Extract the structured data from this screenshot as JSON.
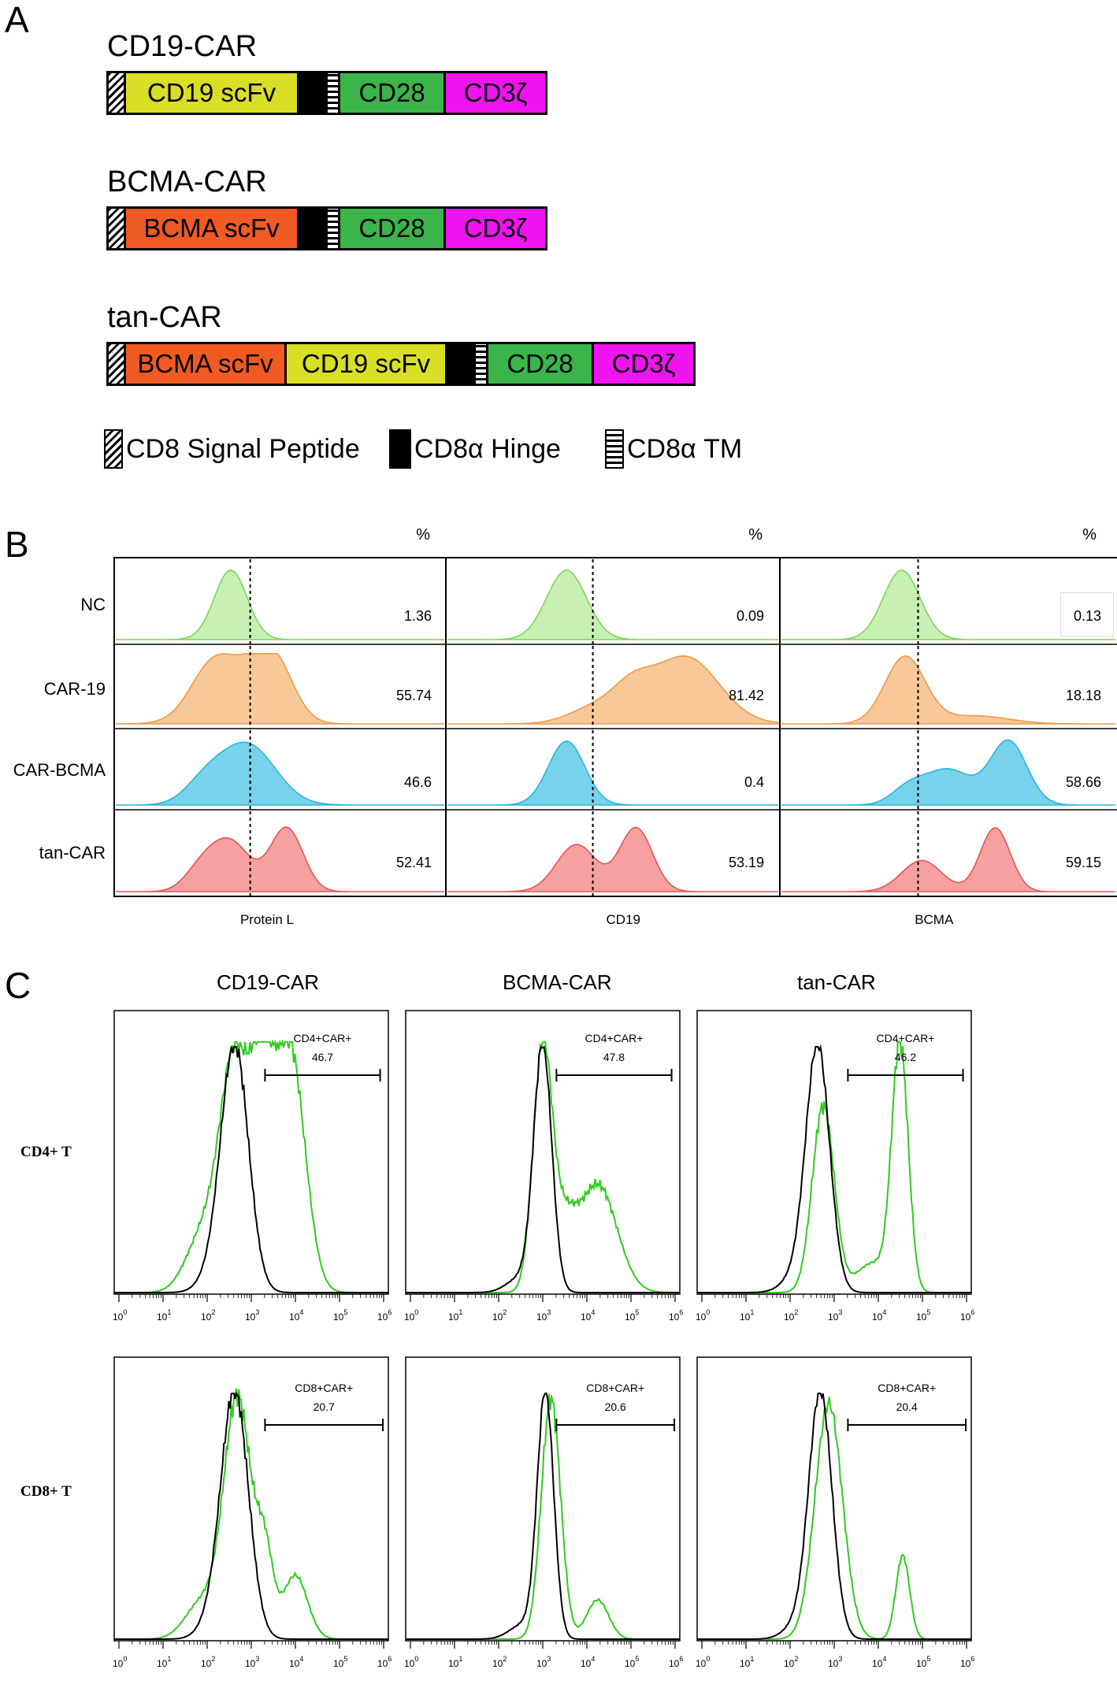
{
  "panelA": {
    "letter": "A",
    "constructs": [
      {
        "title": "CD19-CAR",
        "segments": [
          {
            "type": "signal"
          },
          {
            "type": "domain",
            "label": "CD19 scFv",
            "color": "#d9df26"
          },
          {
            "type": "hinge"
          },
          {
            "type": "tm"
          },
          {
            "type": "domain",
            "label": "CD28",
            "color": "#3bb54a"
          },
          {
            "type": "domain",
            "label": "CD3ζ",
            "color": "#f014f0"
          }
        ]
      },
      {
        "title": "BCMA-CAR",
        "segments": [
          {
            "type": "signal"
          },
          {
            "type": "domain",
            "label": "BCMA scFv",
            "color": "#f05a23"
          },
          {
            "type": "hinge"
          },
          {
            "type": "tm"
          },
          {
            "type": "domain",
            "label": "CD28",
            "color": "#3bb54a"
          },
          {
            "type": "domain",
            "label": "CD3ζ",
            "color": "#f014f0"
          }
        ]
      },
      {
        "title": "tan-CAR",
        "segments": [
          {
            "type": "signal"
          },
          {
            "type": "domain",
            "label": "BCMA scFv",
            "color": "#f05a23"
          },
          {
            "type": "domain",
            "label": "CD19 scFv",
            "color": "#d9df26"
          },
          {
            "type": "hinge"
          },
          {
            "type": "tm"
          },
          {
            "type": "domain",
            "label": "CD28",
            "color": "#3bb54a"
          },
          {
            "type": "domain",
            "label": "CD3ζ",
            "color": "#f014f0"
          }
        ]
      }
    ],
    "legend": [
      {
        "type": "signal",
        "label": "CD8 Signal Peptide"
      },
      {
        "type": "hinge",
        "label": "CD8α Hinge"
      },
      {
        "type": "tm",
        "label": "CD8α TM"
      }
    ]
  },
  "panelB": {
    "letter": "B",
    "pct_header": "%",
    "rows": [
      "NC",
      "CAR-19",
      "CAR-BCMA",
      "tan-CAR"
    ],
    "row_colors": {
      "fill": [
        "#c8f0b4",
        "#f8c898",
        "#78d2ec",
        "#f6a0a0"
      ],
      "line": [
        "#7fd45a",
        "#ec9a48",
        "#29b6d8",
        "#e85454"
      ]
    },
    "columns": [
      {
        "xlabel": "Protein L",
        "values": [
          "1.36",
          "55.74",
          "46.6",
          "52.41"
        ]
      },
      {
        "xlabel": "CD19",
        "values": [
          "0.09",
          "81.42",
          "0.4",
          "53.19"
        ]
      },
      {
        "xlabel": "BCMA",
        "values": [
          "0.13",
          "18.18",
          "58.66",
          "59.15"
        ]
      }
    ]
  },
  "panelC": {
    "letter": "C",
    "columns": [
      "CD19-CAR",
      "BCMA-CAR",
      "tan-CAR"
    ],
    "rows": [
      "CD4+ T",
      "CD8+ T"
    ],
    "gates": [
      [
        {
          "name": "CD4+CAR+",
          "value": "46.7"
        },
        {
          "name": "CD4+CAR+",
          "value": "47.8"
        },
        {
          "name": "CD4+CAR+",
          "value": "46.2"
        }
      ],
      [
        {
          "name": "CD8+CAR+",
          "value": "20.7"
        },
        {
          "name": "CD8+CAR+",
          "value": "20.6"
        },
        {
          "name": "CD8+CAR+",
          "value": "20.4"
        }
      ]
    ],
    "tick_exponents": [
      "0",
      "1",
      "2",
      "3",
      "4",
      "5",
      "6"
    ],
    "tick_base": "10",
    "colors": {
      "control": "#000000",
      "car": "#2ecc1e"
    }
  }
}
